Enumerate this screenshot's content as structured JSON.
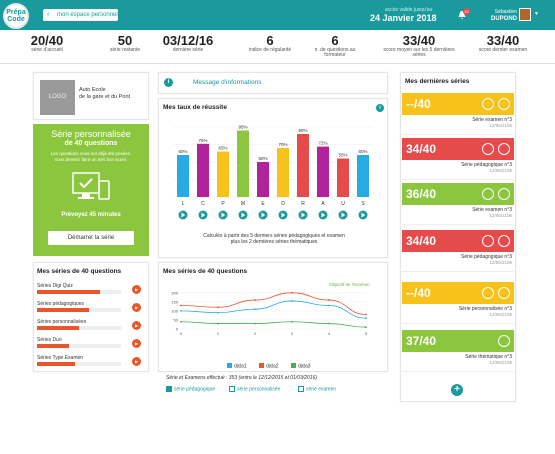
{
  "header": {
    "logo": "Prépa Code",
    "back_label": "mon espace personnel",
    "date_caption": "accès valide jusqu'au",
    "date": "24 Janvier 2018",
    "notifications": "10",
    "user_first": "Sébastien",
    "user_last": "DUPOND"
  },
  "stats": [
    {
      "value": "20/40",
      "label": "série d'accueil"
    },
    {
      "value": "50",
      "label": "série restante"
    },
    {
      "value": "03/12/16",
      "label": "dernière série"
    },
    {
      "value": "6",
      "label": "indice de régularité"
    },
    {
      "value": "6",
      "label": "n. de questions au formateur"
    },
    {
      "value": "33/40",
      "label": "score moyen sur les 5 dernières séries"
    },
    {
      "value": "33/40",
      "label": "score dernier examen"
    }
  ],
  "school": {
    "logo": "LOGO",
    "name_line1": "Auto Ecole",
    "name_line2": "de la gare et du Pont"
  },
  "promo": {
    "title": "Série personnalisée",
    "subtitle": "de 40 questions",
    "desc_line1": "Les questions vous ont déjà été posées.",
    "desc_line2": "Vous devriez faire un très bon score.",
    "duration": "Prévoyez 45 minutes",
    "cta": "Démarrer la série"
  },
  "series40": {
    "title": "Mes séries de 40 questions",
    "items": [
      {
        "name": "Séries Digi Quiz",
        "fill": 0.75
      },
      {
        "name": "Séries pédagogiques",
        "fill": 0.62
      },
      {
        "name": "Séries personnalisées",
        "fill": 0.5
      },
      {
        "name": "Séries Duo",
        "fill": 0.38
      },
      {
        "name": "Séries Type Examen",
        "fill": 0.45
      }
    ]
  },
  "message": {
    "label": "Message d'informations"
  },
  "success": {
    "title": "Mes taux de réussite",
    "note_line1": "Calculés à partir des 5 derniers séries pédagogiques et examen",
    "note_line2": "plus les 2 dernières séries thématiques"
  },
  "chart_data": [
    {
      "type": "bar",
      "categories": [
        "L",
        "C",
        "P",
        "M",
        "E",
        "D",
        "R",
        "A",
        "U",
        "S"
      ],
      "values": [
        60,
        76,
        65,
        95,
        50,
        70,
        90,
        72,
        55,
        60
      ],
      "value_labels": [
        "60%",
        "76%",
        "65%",
        "95%",
        "50%",
        "70%",
        "90%",
        "72%",
        "55%",
        "60%"
      ],
      "colors": [
        "#2aaae2",
        "#b0239a",
        "#f7c21b",
        "#8cc63f",
        "#b0239a",
        "#f7c21b",
        "#e54b4b",
        "#b0239a",
        "#e54b4b",
        "#2aaae2"
      ],
      "ylim": [
        0,
        100
      ],
      "title": "Mes taux de réussite"
    },
    {
      "type": "line",
      "title": "Mes séries de 40 questions",
      "annotation": "Objectif de l'examen",
      "x": [
        0,
        1,
        2,
        3,
        4,
        5
      ],
      "series": [
        {
          "name": "data1",
          "color": "#2aaae2",
          "values": [
            100,
            90,
            110,
            155,
            130,
            60
          ]
        },
        {
          "name": "data2",
          "color": "#e8572a",
          "values": [
            130,
            120,
            160,
            200,
            160,
            80
          ]
        },
        {
          "name": "data3",
          "color": "#4caf50",
          "values": [
            40,
            30,
            30,
            40,
            30,
            10
          ]
        }
      ],
      "yticks": [
        0,
        50,
        100,
        150,
        200
      ],
      "ylim": [
        0,
        210
      ],
      "xticks": [
        "0",
        "1",
        "2",
        "3",
        "4",
        "5"
      ]
    }
  ],
  "series_chart": {
    "title": "Mes séries de 40 questions",
    "objective": "Objectif de l'examen",
    "summary": "Série et Examens effectué : 353 (entre le 12/12/2015 et 01/03/2016)",
    "checks": [
      {
        "label": "série pédagogique",
        "checked": true
      },
      {
        "label": "série personnalisée",
        "checked": false
      },
      {
        "label": "série examen",
        "checked": false
      }
    ]
  },
  "recent": {
    "title": "Mes dernières séries",
    "items": [
      {
        "score": "--/40",
        "color": "#f7c21b",
        "name": "Série examen n°3",
        "date": "12/06/2106"
      },
      {
        "score": "34/40",
        "color": "#e54b4b",
        "name": "Série pédagogique n°3",
        "date": "12/06/2106"
      },
      {
        "score": "36/40",
        "color": "#8cc63f",
        "name": "Série examen n°3",
        "date": "12/06/2106"
      },
      {
        "score": "34/40",
        "color": "#e54b4b",
        "name": "Série pédagogique n°3",
        "date": "12/06/2106"
      },
      {
        "score": "--/40",
        "color": "#f7c21b",
        "name": "Série personnalisée n°3",
        "date": "12/06/2106"
      },
      {
        "score": "37/40",
        "color": "#8cc63f",
        "name": "Série thématique n°3",
        "date": "12/06/2106"
      }
    ]
  }
}
